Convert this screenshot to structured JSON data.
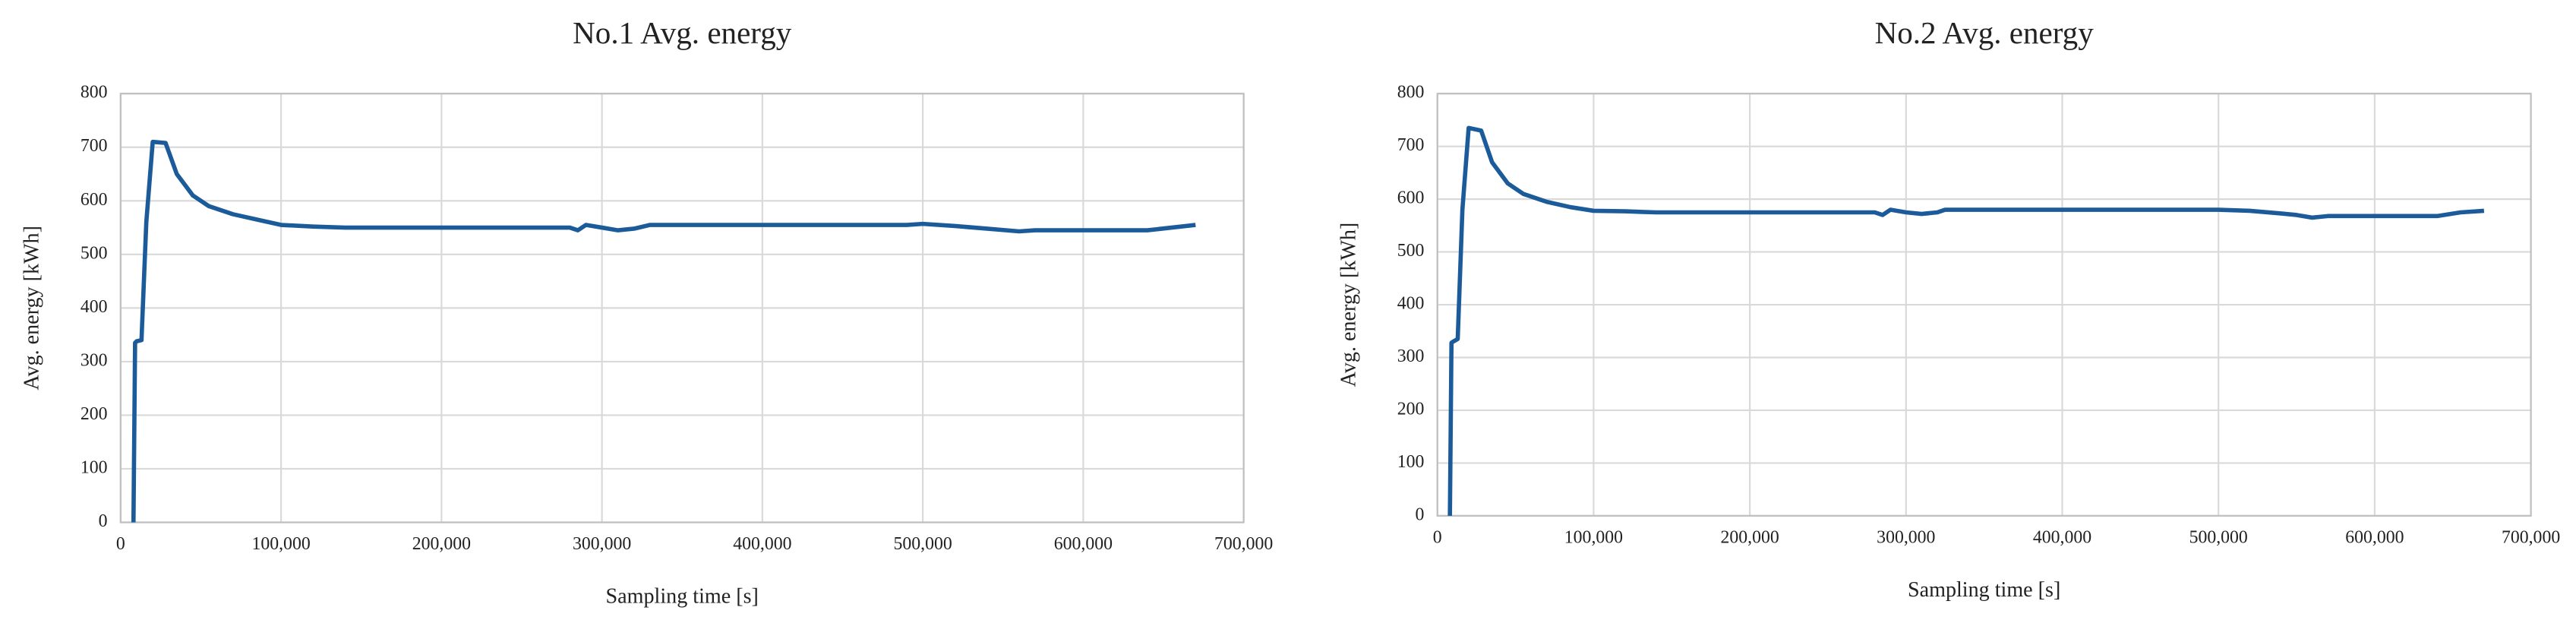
{
  "chart_data": [
    {
      "type": "line",
      "title": "No.1 Avg. energy",
      "x_label": "Sampling time [s]",
      "y_label": "Avg. energy [kWh]",
      "x": [
        8000,
        9000,
        10000,
        13000,
        16000,
        20000,
        28000,
        35000,
        45000,
        55000,
        70000,
        85000,
        100000,
        120000,
        140000,
        280000,
        285000,
        290000,
        300000,
        310000,
        320000,
        330000,
        490000,
        500000,
        520000,
        540000,
        560000,
        570000,
        640000,
        655000,
        670000
      ],
      "values": [
        0,
        335,
        338,
        340,
        560,
        710,
        708,
        650,
        610,
        590,
        575,
        565,
        555,
        552,
        550,
        550,
        545,
        555,
        550,
        545,
        548,
        555,
        555,
        557,
        553,
        548,
        543,
        545,
        545,
        550,
        555
      ],
      "color": "#1c5b99",
      "xlim": [
        0,
        700000
      ],
      "ylim": [
        0,
        800
      ],
      "xticks": [
        0,
        {
          "value": 100000,
          "label": "100,000"
        },
        {
          "value": 200000,
          "label": "200,000"
        },
        {
          "value": 300000,
          "label": "300,000"
        },
        {
          "value": 400000,
          "label": "400,000"
        },
        {
          "value": 500000,
          "label": "500,000"
        },
        {
          "value": 600000,
          "label": "600,000"
        },
        {
          "value": 700000,
          "label": "700,000"
        }
      ],
      "yticks": [
        0,
        100,
        200,
        300,
        400,
        500,
        600,
        700,
        800
      ],
      "grid": true
    },
    {
      "type": "line",
      "title": "No.2 Avg. energy",
      "x_label": "Sampling time [s]",
      "y_label": "Avg. energy [kWh]",
      "x": [
        8000,
        9000,
        10000,
        13000,
        16000,
        20000,
        28000,
        35000,
        45000,
        55000,
        70000,
        85000,
        100000,
        120000,
        140000,
        280000,
        285000,
        290000,
        300000,
        310000,
        320000,
        325000,
        500000,
        520000,
        540000,
        550000,
        560000,
        570000,
        640000,
        655000,
        670000
      ],
      "values": [
        0,
        328,
        330,
        335,
        580,
        735,
        730,
        670,
        630,
        610,
        595,
        585,
        578,
        577,
        575,
        575,
        570,
        580,
        575,
        572,
        575,
        580,
        580,
        578,
        573,
        570,
        565,
        568,
        568,
        575,
        578
      ],
      "color": "#1c5b99",
      "xlim": [
        0,
        700000
      ],
      "ylim": [
        0,
        800
      ],
      "xticks": [
        0,
        {
          "value": 100000,
          "label": "100,000"
        },
        {
          "value": 200000,
          "label": "200,000"
        },
        {
          "value": 300000,
          "label": "300,000"
        },
        {
          "value": 400000,
          "label": "400,000"
        },
        {
          "value": 500000,
          "label": "500,000"
        },
        {
          "value": 600000,
          "label": "600,000"
        },
        {
          "value": 700000,
          "label": "700,000"
        }
      ],
      "yticks": [
        0,
        100,
        200,
        300,
        400,
        500,
        600,
        700,
        800
      ],
      "grid": true
    }
  ]
}
